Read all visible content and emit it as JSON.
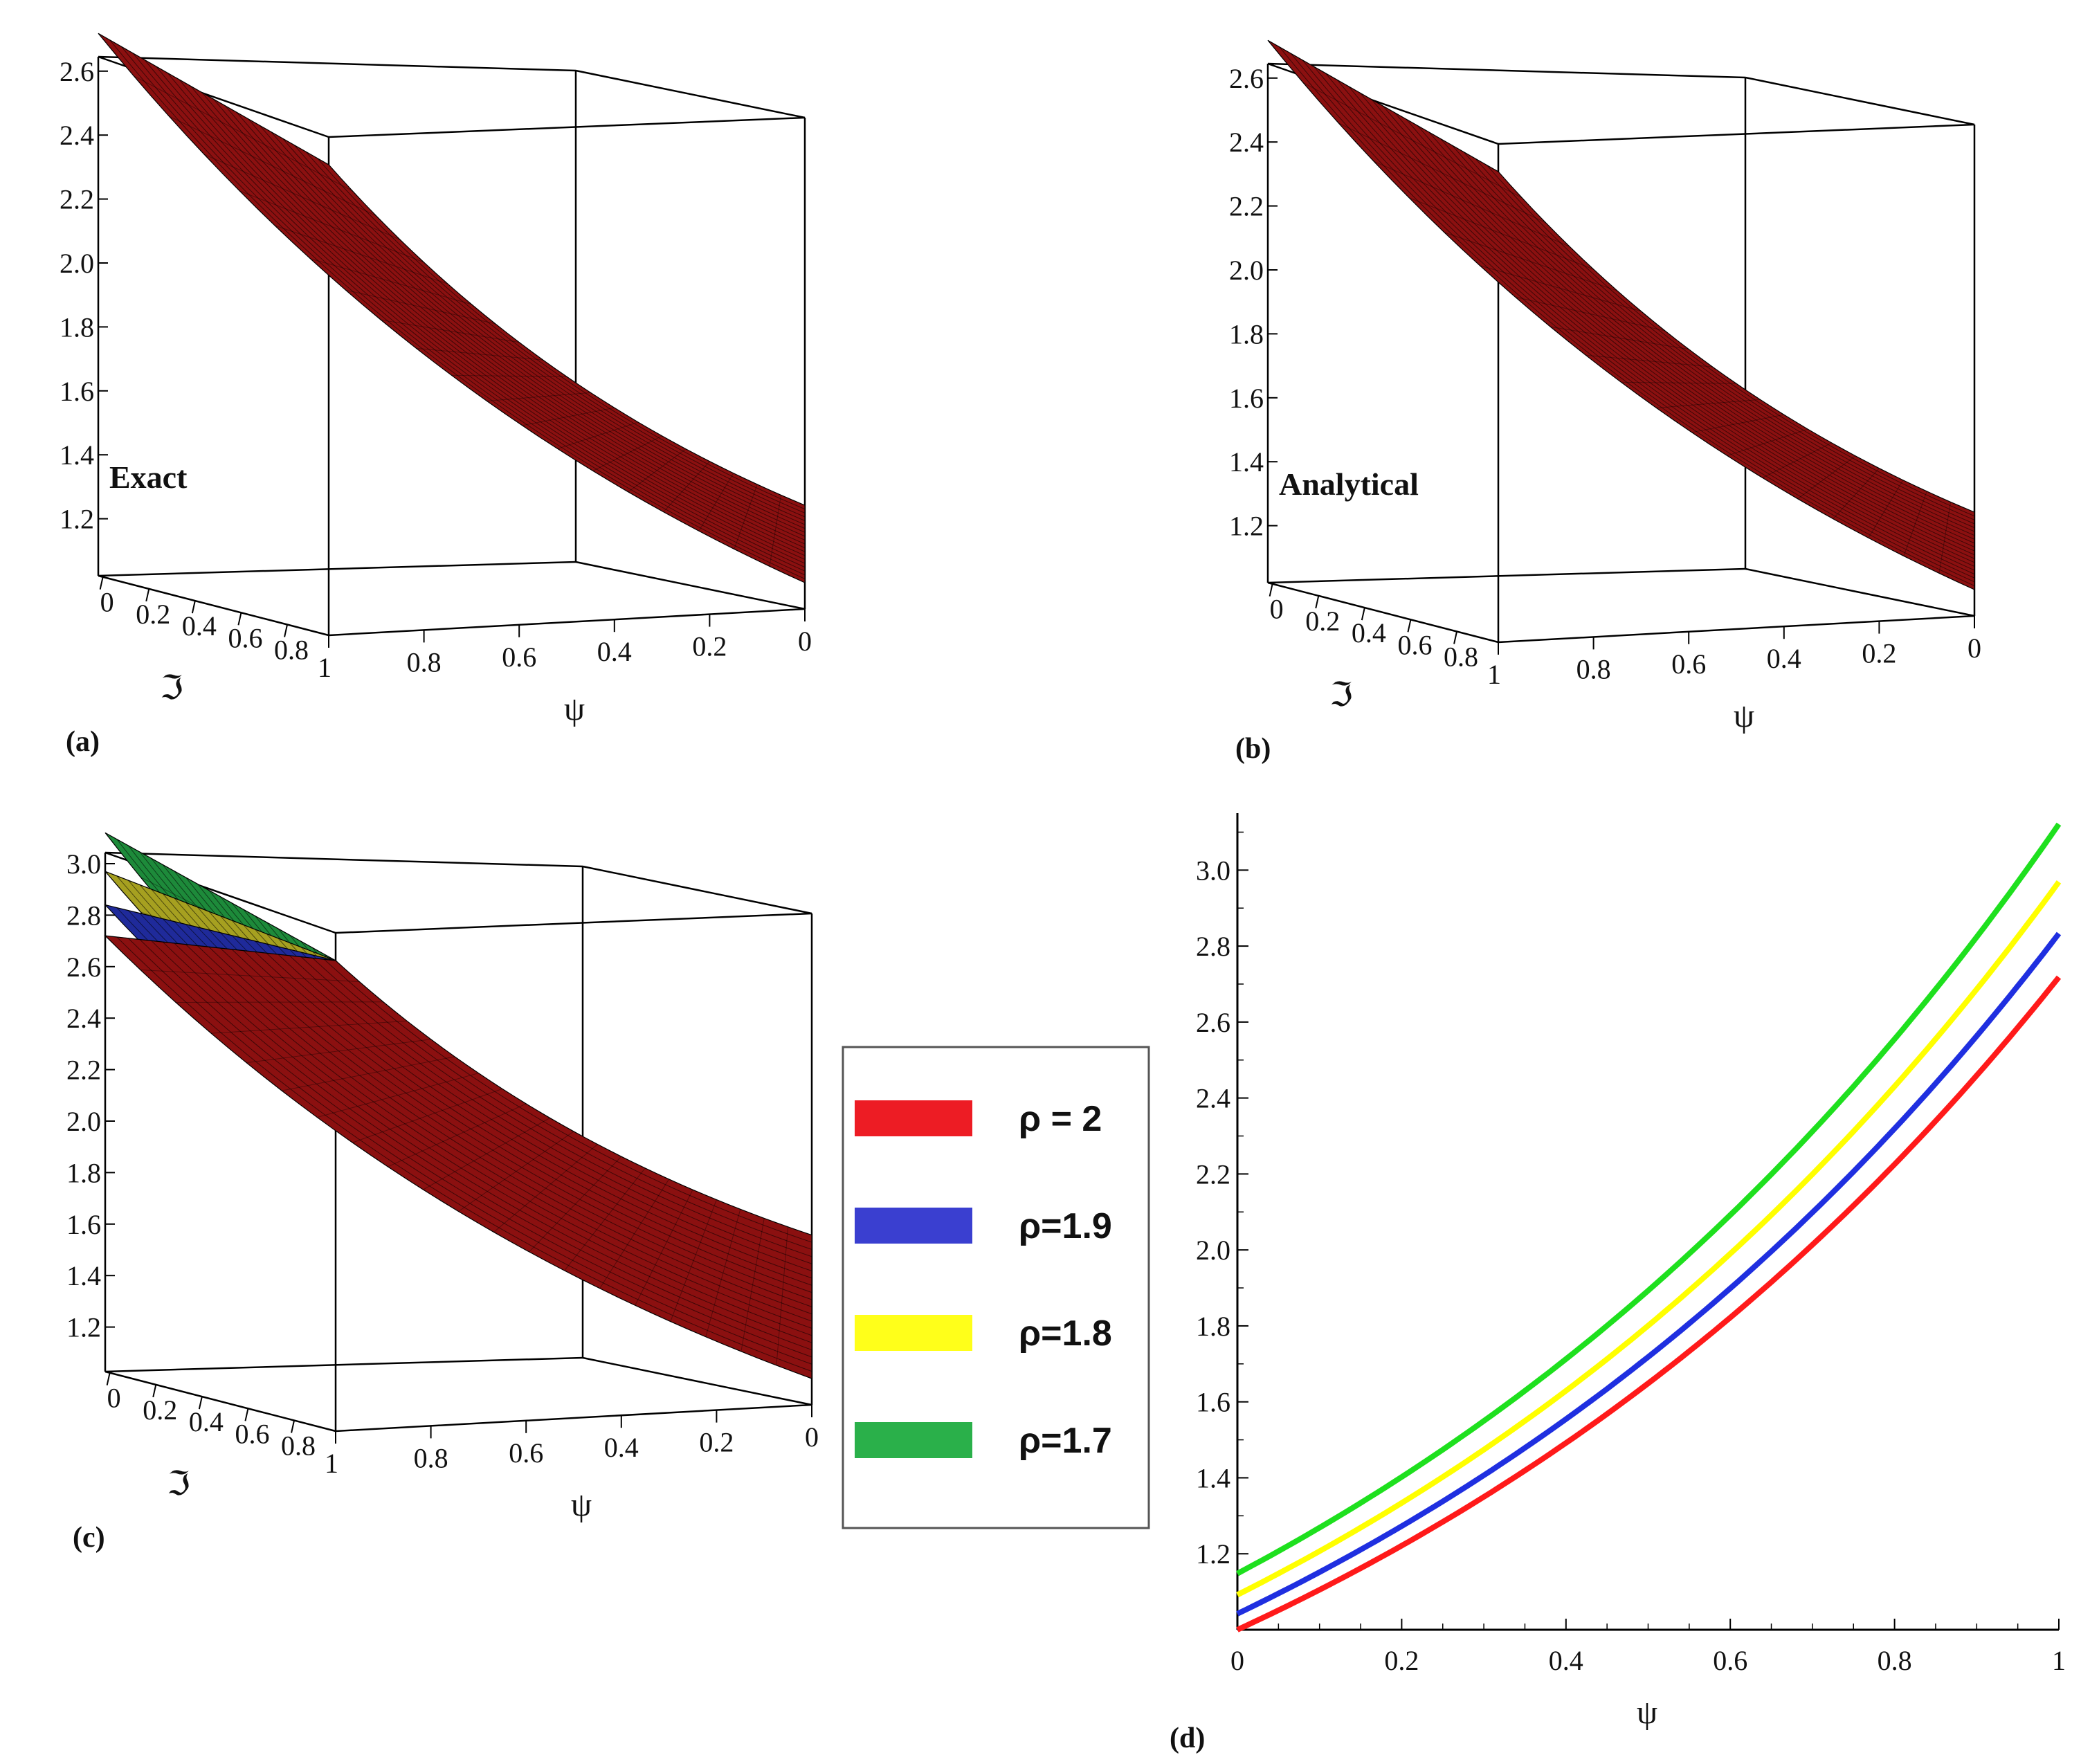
{
  "chart_data": [
    {
      "id": "a",
      "type": "surface",
      "panel_label": "(a)",
      "inset_label": "Exact",
      "x_axis": {
        "symbol": "ℑ",
        "ticks": [
          "0",
          "0.2",
          "0.4",
          "0.6",
          "0.8"
        ]
      },
      "psi_axis": {
        "symbol": "ψ",
        "ticks": [
          "1",
          "0.8",
          "0.6",
          "0.4",
          "0.2",
          "0"
        ]
      },
      "z_axis": {
        "ticks": [
          "2.6",
          "2.4",
          "2.2",
          "2.0",
          "1.8",
          "1.6",
          "1.4",
          "1.2"
        ],
        "range": [
          1.0,
          2.72
        ]
      },
      "surfaces": [
        {
          "rho": 2,
          "color": "#8b1010",
          "values_at_psi": {
            "psi": [
              0,
              0.25,
              0.5,
              0.75,
              1
            ],
            "value": [
              1.0,
              1.284,
              1.649,
              2.117,
              2.718
            ]
          }
        }
      ]
    },
    {
      "id": "b",
      "type": "surface",
      "panel_label": "(b)",
      "inset_label": "Analytical",
      "x_axis": {
        "symbol": "ℑ",
        "ticks": [
          "0",
          "0.2",
          "0.4",
          "0.6",
          "0.8"
        ]
      },
      "psi_axis": {
        "symbol": "ψ",
        "ticks": [
          "1",
          "0.8",
          "0.6",
          "0.4",
          "0.2",
          "0"
        ]
      },
      "z_axis": {
        "ticks": [
          "2.6",
          "2.4",
          "2.2",
          "2.0",
          "1.8",
          "1.6",
          "1.4",
          "1.2"
        ],
        "range": [
          1.0,
          2.72
        ]
      },
      "surfaces": [
        {
          "rho": 2,
          "color": "#8b1010",
          "values_at_psi": {
            "psi": [
              0,
              0.25,
              0.5,
              0.75,
              1
            ],
            "value": [
              1.0,
              1.284,
              1.649,
              2.117,
              2.718
            ]
          }
        }
      ]
    },
    {
      "id": "c",
      "type": "surface",
      "panel_label": "(c)",
      "x_axis": {
        "symbol": "ℑ",
        "ticks": [
          "0",
          "0.2",
          "0.4",
          "0.6",
          "0.8"
        ]
      },
      "psi_axis": {
        "symbol": "ψ",
        "ticks": [
          "1",
          "0.8",
          "0.6",
          "0.4",
          "0.2",
          "0"
        ]
      },
      "z_axis": {
        "ticks": [
          "3.0",
          "2.8",
          "2.6",
          "2.4",
          "2.2",
          "2.0",
          "1.8",
          "1.6",
          "1.4",
          "1.2"
        ],
        "range": [
          1.0,
          3.12
        ]
      },
      "surfaces": [
        {
          "rho": 2,
          "color": "#8b1010",
          "value_at_psi1": 2.72
        },
        {
          "rho": 1.9,
          "color": "#1f2a9a",
          "value_at_psi1": 2.84
        },
        {
          "rho": 1.8,
          "color": "#a6a020",
          "value_at_psi1": 2.97
        },
        {
          "rho": 1.7,
          "color": "#1d8a3a",
          "value_at_psi1": 3.12
        }
      ]
    },
    {
      "id": "d",
      "type": "line",
      "panel_label": "(d)",
      "xlabel": "ψ",
      "ylabel": "",
      "xlim": [
        0,
        1
      ],
      "ylim": [
        1.0,
        3.15
      ],
      "x_ticks": [
        "0",
        "0.2",
        "0.4",
        "0.6",
        "0.8",
        "1"
      ],
      "y_ticks": [
        "1.2",
        "1.4",
        "1.6",
        "1.8",
        "2.0",
        "2.2",
        "2.4",
        "2.6",
        "2.8",
        "3.0"
      ],
      "x": [
        0,
        0.1,
        0.2,
        0.3,
        0.4,
        0.5,
        0.6,
        0.7,
        0.8,
        0.9,
        1.0
      ],
      "series": [
        {
          "name": "ρ = 2",
          "color": "#ff1a1a",
          "values": [
            1.0,
            1.105,
            1.221,
            1.35,
            1.492,
            1.649,
            1.822,
            2.014,
            2.226,
            2.46,
            2.718
          ]
        },
        {
          "name": "ρ=1.9",
          "color": "#1f2fe0",
          "values": [
            1.042,
            1.152,
            1.273,
            1.407,
            1.555,
            1.718,
            1.899,
            2.099,
            2.32,
            2.564,
            2.833
          ]
        },
        {
          "name": "ρ=1.8",
          "color": "#ffff00",
          "values": [
            1.092,
            1.207,
            1.334,
            1.474,
            1.629,
            1.801,
            1.99,
            2.199,
            2.431,
            2.686,
            2.969
          ]
        },
        {
          "name": "ρ=1.7",
          "color": "#1ee01e",
          "values": [
            1.148,
            1.269,
            1.402,
            1.55,
            1.713,
            1.893,
            2.092,
            2.312,
            2.555,
            2.824,
            3.121
          ]
        }
      ]
    }
  ],
  "legend": {
    "entries": [
      {
        "label": "ρ = 2",
        "color": "#ed1c24"
      },
      {
        "label": "ρ=1.9",
        "color": "#3a3fd0"
      },
      {
        "label": "ρ=1.8",
        "color": "#ffff1a"
      },
      {
        "label": "ρ=1.7",
        "color": "#2ab04a"
      }
    ]
  }
}
